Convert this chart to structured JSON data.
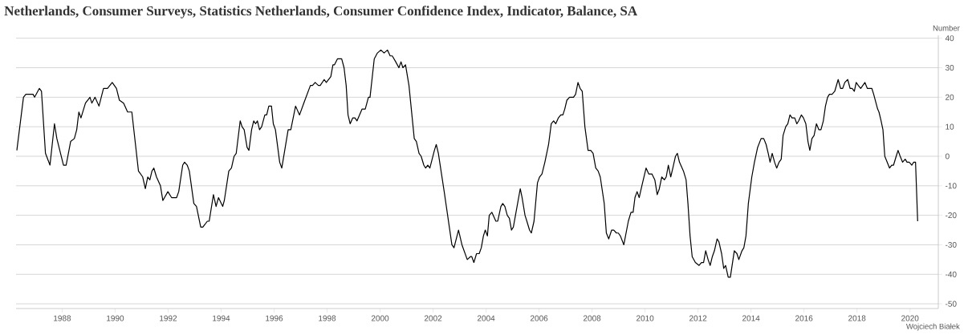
{
  "chart_data": {
    "type": "line",
    "title": "Netherlands, Consumer Surveys, Statistics Netherlands, Consumer Confidence Index, Indicator, Balance, SA",
    "ylabel": "Number",
    "annotations": [
      "Wojciech Białek"
    ],
    "color": "#000000",
    "grid": "y",
    "xlim": [
      1986.26,
      2021.07
    ],
    "ylim": [
      -51.6,
      41
    ],
    "xticks": [
      1988,
      1990,
      1992,
      1994,
      1996,
      1998,
      2000,
      2002,
      2004,
      2006,
      2008,
      2010,
      2012,
      2014,
      2016,
      2018,
      2020
    ],
    "yticks": [
      -50,
      -40,
      -30,
      -20,
      -10,
      0,
      10,
      20,
      30,
      40
    ],
    "x": [
      1986.29,
      1986.54,
      1986.63,
      1986.9,
      1986.96,
      1987.14,
      1987.22,
      1987.37,
      1987.54,
      1987.71,
      1987.8,
      1988.05,
      1988.15,
      1988.32,
      1988.46,
      1988.55,
      1988.63,
      1988.71,
      1988.88,
      1989.05,
      1989.12,
      1989.24,
      1989.39,
      1989.56,
      1989.71,
      1989.89,
      1990.05,
      1990.16,
      1990.32,
      1990.47,
      1990.63,
      1990.88,
      1991.04,
      1991.14,
      1991.23,
      1991.31,
      1991.39,
      1991.46,
      1991.56,
      1991.71,
      1991.8,
      1991.99,
      1992.13,
      1992.32,
      1992.4,
      1992.55,
      1992.62,
      1992.72,
      1992.8,
      1992.97,
      1993.07,
      1993.23,
      1993.31,
      1993.48,
      1993.55,
      1993.71,
      1993.81,
      1993.9,
      1994.06,
      1994.12,
      1994.29,
      1994.39,
      1994.49,
      1994.57,
      1994.72,
      1994.79,
      1994.87,
      1994.98,
      1995.05,
      1995.15,
      1995.23,
      1995.3,
      1995.37,
      1995.45,
      1995.53,
      1995.65,
      1995.72,
      1995.8,
      1995.9,
      1995.97,
      1996.05,
      1996.21,
      1996.29,
      1996.53,
      1996.63,
      1996.81,
      1996.96,
      1997.12,
      1997.37,
      1997.45,
      1997.55,
      1997.67,
      1997.74,
      1997.89,
      1997.97,
      1998.14,
      1998.22,
      1998.28,
      1998.39,
      1998.55,
      1998.64,
      1998.72,
      1998.79,
      1998.87,
      1998.97,
      1999.05,
      1999.13,
      1999.32,
      1999.44,
      1999.56,
      1999.62,
      1999.78,
      1999.9,
      2000.03,
      2000.15,
      2000.28,
      2000.38,
      2000.46,
      2000.59,
      2000.71,
      2000.79,
      2000.86,
      2000.96,
      2001.09,
      2001.29,
      2001.37,
      2001.47,
      2001.55,
      2001.65,
      2001.72,
      2001.8,
      2001.88,
      2002.05,
      2002.12,
      2002.2,
      2002.42,
      2002.71,
      2002.79,
      2002.96,
      2003.09,
      2003.29,
      2003.41,
      2003.46,
      2003.54,
      2003.64,
      2003.74,
      2003.82,
      2003.9,
      2003.97,
      2004.05,
      2004.12,
      2004.22,
      2004.37,
      2004.44,
      2004.56,
      2004.63,
      2004.71,
      2004.8,
      2004.88,
      2004.96,
      2005.03,
      2005.29,
      2005.36,
      2005.47,
      2005.54,
      2005.64,
      2005.71,
      2005.81,
      2005.94,
      2006.02,
      2006.11,
      2006.22,
      2006.36,
      2006.46,
      2006.55,
      2006.63,
      2006.73,
      2006.82,
      2006.9,
      2006.97,
      2007.05,
      2007.15,
      2007.3,
      2007.38,
      2007.47,
      2007.55,
      2007.63,
      2007.73,
      2007.85,
      2007.95,
      2008.04,
      2008.14,
      2008.23,
      2008.31,
      2008.46,
      2008.54,
      2008.63,
      2008.74,
      2008.82,
      2008.92,
      2008.99,
      2009.07,
      2009.2,
      2009.37,
      2009.47,
      2009.55,
      2009.62,
      2009.7,
      2009.78,
      2009.88,
      2010.04,
      2010.14,
      2010.26,
      2010.37,
      2010.46,
      2010.54,
      2010.63,
      2010.73,
      2010.8,
      2010.88,
      2010.97,
      2011.05,
      2011.15,
      2011.22,
      2011.3,
      2011.45,
      2011.55,
      2011.62,
      2011.7,
      2011.78,
      2011.9,
      2012.04,
      2012.13,
      2012.21,
      2012.29,
      2012.38,
      2012.46,
      2012.54,
      2012.62,
      2012.72,
      2012.79,
      2012.89,
      2012.97,
      2013.04,
      2013.14,
      2013.22,
      2013.37,
      2013.47,
      2013.54,
      2013.66,
      2013.73,
      2013.81,
      2013.9,
      2014.03,
      2014.13,
      2014.25,
      2014.38,
      2014.48,
      2014.57,
      2014.65,
      2014.72,
      2014.8,
      2014.89,
      2014.97,
      2015.06,
      2015.14,
      2015.21,
      2015.31,
      2015.39,
      2015.47,
      2015.55,
      2015.65,
      2015.73,
      2015.8,
      2015.9,
      2015.98,
      2016.07,
      2016.15,
      2016.22,
      2016.3,
      2016.38,
      2016.47,
      2016.56,
      2016.64,
      2016.73,
      2016.81,
      2016.89,
      2016.96,
      2017.06,
      2017.16,
      2017.29,
      2017.38,
      2017.46,
      2017.54,
      2017.65,
      2017.74,
      2017.82,
      2017.9,
      2017.97,
      2018.05,
      2018.14,
      2018.22,
      2018.3,
      2018.39,
      2018.56,
      2018.63,
      2018.78,
      2018.83,
      2018.91,
      2018.98,
      2019.05,
      2019.23,
      2019.31,
      2019.38,
      2019.48,
      2019.55,
      2019.63,
      2019.72,
      2019.82,
      2019.89,
      2019.97,
      2020.07,
      2020.14,
      2020.21,
      2020.29
    ],
    "values": [
      2,
      20,
      21,
      21,
      20,
      23,
      22,
      1,
      -3,
      11,
      6,
      -3,
      -3,
      5,
      6,
      9,
      15,
      13,
      18,
      20,
      18,
      20,
      17,
      23,
      23,
      25,
      23,
      19,
      18,
      15,
      15,
      -5,
      -7,
      -11,
      -7,
      -8,
      -5,
      -4,
      -7,
      -10,
      -15,
      -12,
      -14,
      -14,
      -12,
      -3,
      -2,
      -3,
      -5,
      -16,
      -17,
      -24,
      -24,
      -22,
      -22,
      -13,
      -17,
      -14,
      -17,
      -15,
      -5,
      -4,
      0,
      1,
      12,
      10,
      9,
      3,
      2,
      9,
      12,
      11,
      12,
      9,
      10,
      14,
      14,
      17,
      17,
      11,
      9,
      -2,
      -4,
      9,
      9,
      17,
      14,
      18,
      24,
      24,
      25,
      24,
      24,
      26,
      25,
      27,
      31,
      31,
      33,
      33,
      30,
      24,
      14,
      11,
      13,
      13,
      12,
      16,
      16,
      20,
      20,
      33,
      35,
      36,
      35,
      36,
      34,
      34,
      32,
      30,
      32,
      30,
      31,
      24,
      6,
      5,
      1,
      0,
      -3,
      -4,
      -3,
      -4,
      2,
      4,
      1,
      -12,
      -30,
      -31,
      -25,
      -30,
      -35,
      -34,
      -34,
      -36,
      -33,
      -33,
      -31,
      -27,
      -25,
      -27,
      -20,
      -19,
      -22,
      -22,
      -17,
      -16,
      -17,
      -20,
      -21,
      -25,
      -24,
      -11,
      -14,
      -20,
      -22,
      -25,
      -26,
      -22,
      -9,
      -7,
      -6,
      -2,
      4,
      11,
      12,
      11,
      13,
      14,
      14,
      16,
      19,
      20,
      20,
      21,
      25,
      23,
      22,
      10,
      2,
      2,
      1,
      -4,
      -5,
      -7,
      -16,
      -26,
      -28,
      -25,
      -25,
      -26,
      -26,
      -27,
      -30,
      -22,
      -19,
      -19,
      -14,
      -12,
      -14,
      -10,
      -4,
      -6,
      -6,
      -8,
      -13,
      -11,
      -7,
      -8,
      -7,
      -3,
      -7,
      -4,
      0,
      1,
      -2,
      -5,
      -8,
      -16,
      -27,
      -34,
      -36,
      -37,
      -36,
      -36,
      -32,
      -35,
      -37,
      -34,
      -32,
      -28,
      -29,
      -33,
      -38,
      -37,
      -41,
      -41,
      -32,
      -33,
      -35,
      -32,
      -31,
      -27,
      -16,
      -7,
      -2,
      3,
      6,
      6,
      4,
      1,
      -2,
      1,
      -2,
      -4,
      -2,
      -1,
      7,
      10,
      11,
      14,
      13,
      13,
      11,
      12,
      14,
      13,
      11,
      5,
      2,
      6,
      7,
      11,
      9,
      9,
      12,
      17,
      20,
      21,
      21,
      22,
      26,
      23,
      23,
      25,
      26,
      23,
      23,
      22,
      25,
      24,
      23,
      24,
      25,
      23,
      23,
      21,
      16,
      15,
      12,
      9,
      0,
      -4,
      -3,
      -3,
      0,
      2,
      0,
      -2,
      -1,
      -2,
      -2,
      -3,
      -2,
      -2,
      -22
    ]
  }
}
